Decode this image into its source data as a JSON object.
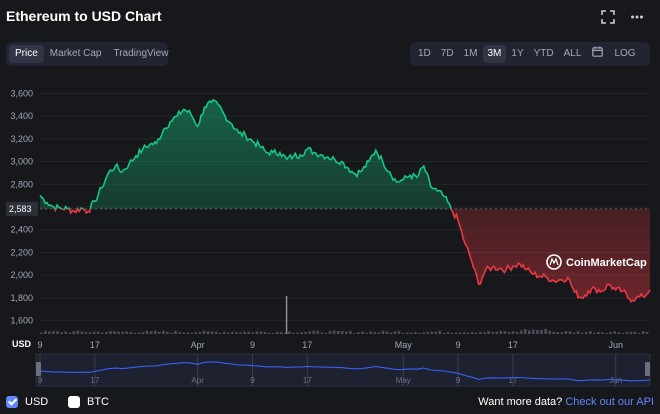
{
  "header": {
    "title": "Ethereum to USD Chart"
  },
  "view_tabs": [
    "Price",
    "Market Cap",
    "TradingView"
  ],
  "view_active": 0,
  "range_buttons": [
    "1D",
    "7D",
    "1M",
    "3M",
    "1Y",
    "YTD",
    "ALL"
  ],
  "range_active": 3,
  "log_label": "LOG",
  "watermark": "CoinMarketCap",
  "currency_label": "USD",
  "footer": {
    "usd_label": "USD",
    "btc_label": "BTC",
    "api_prefix": "Want more data?",
    "api_link": "Check out our API"
  },
  "colors": {
    "up": "#16c784",
    "down": "#ea3943",
    "nav_line": "#3861fb",
    "accent": "#6188ff"
  },
  "chart_data": {
    "type": "line",
    "title": "Ethereum to USD Chart",
    "ylim": [
      1500,
      3700
    ],
    "y_ticks": [
      3600,
      3400,
      3200,
      3000,
      2800,
      2600,
      2400,
      2200,
      2000,
      1800,
      1600
    ],
    "y_tick_labels": [
      "3,600",
      "3,400",
      "3,200",
      "3,000",
      "2,800",
      "2,600",
      "2,400",
      "2,200",
      "2,000",
      "1,800",
      "1,600"
    ],
    "x_tick_labels": [
      "9",
      "17",
      "Apr",
      "9",
      "17",
      "May",
      "9",
      "17",
      "Jun"
    ],
    "reference_value": 2583,
    "reference_label": "2,583",
    "series": [
      {
        "x": [
          "Mar 9",
          "Mar 10",
          "Mar 11",
          "Mar 12",
          "Mar 13",
          "Mar 14",
          "Mar 15",
          "Mar 16",
          "Mar 17",
          "Mar 18",
          "Mar 19",
          "Mar 20",
          "Mar 21",
          "Mar 22",
          "Mar 23",
          "Mar 24",
          "Mar 25",
          "Mar 26",
          "Mar 27",
          "Mar 28",
          "Mar 29",
          "Mar 30",
          "Mar 31",
          "Apr 1",
          "Apr 2",
          "Apr 3",
          "Apr 4",
          "Apr 5",
          "Apr 6",
          "Apr 7",
          "Apr 8",
          "Apr 9",
          "Apr 10",
          "Apr 11",
          "Apr 12",
          "Apr 13",
          "Apr 14",
          "Apr 15",
          "Apr 16",
          "Apr 17",
          "Apr 18",
          "Apr 19",
          "Apr 20",
          "Apr 21",
          "Apr 22",
          "Apr 23",
          "Apr 24",
          "Apr 25",
          "Apr 26",
          "Apr 27",
          "Apr 28",
          "Apr 29",
          "Apr 30",
          "May 1",
          "May 2",
          "May 3",
          "May 4",
          "May 5",
          "May 6",
          "May 7",
          "May 8",
          "May 9",
          "May 10",
          "May 11",
          "May 12",
          "May 13",
          "May 14",
          "May 15",
          "May 16",
          "May 17",
          "May 18",
          "May 19",
          "May 20",
          "May 21",
          "May 22",
          "May 23",
          "May 24",
          "May 25",
          "May 26",
          "May 27",
          "May 28",
          "May 29",
          "May 30",
          "May 31",
          "Jun 1",
          "Jun 2",
          "Jun 3",
          "Jun 4",
          "Jun 5",
          "Jun 6"
        ],
        "values": [
          2700,
          2640,
          2600,
          2590,
          2585,
          2560,
          2590,
          2560,
          2650,
          2770,
          2900,
          2960,
          2910,
          2980,
          3050,
          3110,
          3150,
          3160,
          3280,
          3350,
          3400,
          3460,
          3420,
          3310,
          3480,
          3520,
          3500,
          3400,
          3330,
          3250,
          3230,
          3180,
          3140,
          3080,
          3080,
          3080,
          3020,
          3050,
          3060,
          3110,
          3080,
          3060,
          3040,
          3020,
          3000,
          2940,
          2890,
          2920,
          3000,
          3100,
          3000,
          2910,
          2820,
          2840,
          2880,
          2860,
          2960,
          2780,
          2740,
          2690,
          2580,
          2480,
          2280,
          2120,
          1920,
          2040,
          2070,
          2060,
          2050,
          2080,
          2100,
          2050,
          2010,
          1990,
          1980,
          1950,
          1960,
          1980,
          1850,
          1800,
          1860,
          1880,
          1860,
          1920,
          1870,
          1860,
          1790,
          1800,
          1810,
          1870
        ]
      }
    ]
  }
}
